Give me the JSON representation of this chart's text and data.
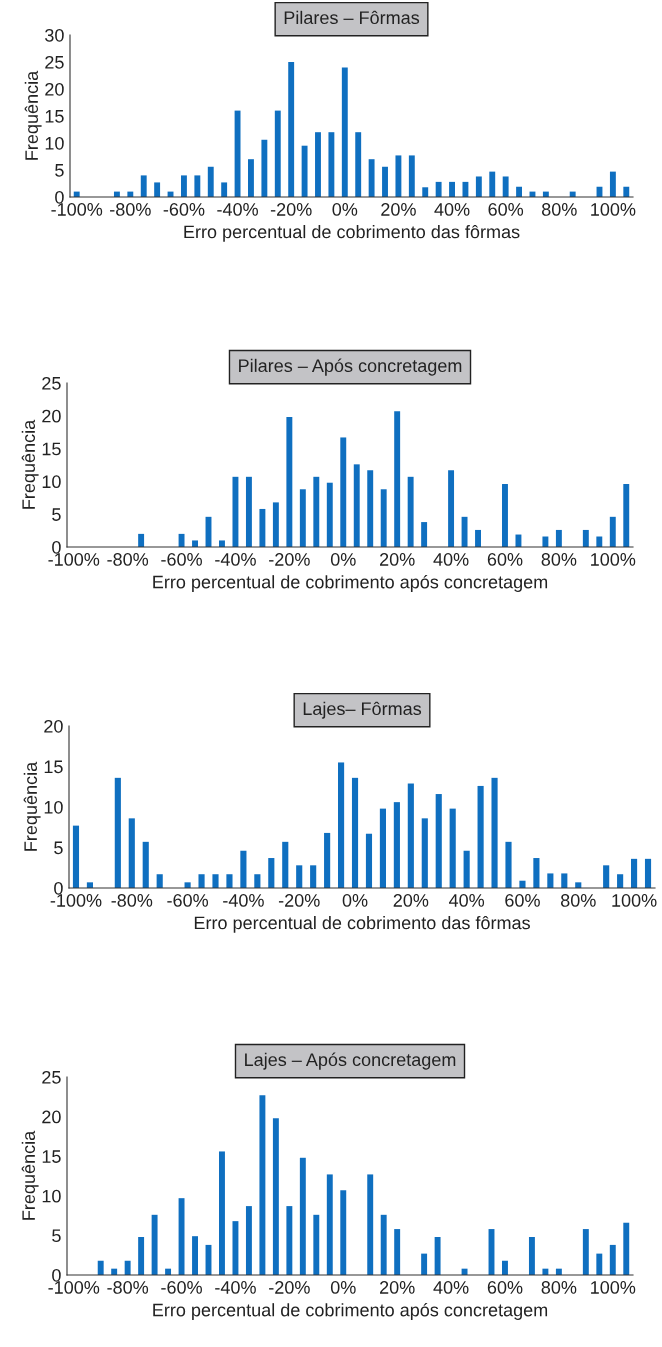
{
  "chart_data": [
    {
      "type": "bar",
      "title": "Pilares – Fôrmas",
      "xlabel": "Erro percentual de cobrimento das fôrmas",
      "ylabel": "Frequência",
      "color": "#0f6fc0",
      "x": [
        -100,
        -95,
        -90,
        -85,
        -80,
        -75,
        -70,
        -65,
        -60,
        -55,
        -50,
        -45,
        -40,
        -35,
        -30,
        -25,
        -20,
        -15,
        -10,
        -5,
        0,
        5,
        10,
        15,
        20,
        25,
        30,
        35,
        40,
        45,
        50,
        55,
        60,
        65,
        70,
        75,
        80,
        85,
        90,
        95,
        100,
        105
      ],
      "values": [
        1,
        0,
        0,
        1,
        1,
        4,
        2.7,
        1,
        4,
        4,
        5.6,
        2.7,
        16,
        7,
        10.6,
        16,
        25,
        9.5,
        12,
        12,
        24,
        12,
        7,
        5.6,
        7.7,
        7.7,
        1.8,
        2.8,
        2.8,
        2.8,
        3.8,
        4.7,
        3.8,
        1.9,
        1,
        1,
        0,
        1,
        0,
        1.9,
        4.7,
        1.9
      ],
      "xlim": [
        -102.5,
        107.5
      ],
      "xticks": [
        {
          "value": -100,
          "label": "-100%"
        },
        {
          "value": -80,
          "label": "-80%"
        },
        {
          "value": -60,
          "label": "-60%"
        },
        {
          "value": -40,
          "label": "-40%"
        },
        {
          "value": -20,
          "label": "-20%"
        },
        {
          "value": 0,
          "label": "0%"
        },
        {
          "value": 20,
          "label": "20%"
        },
        {
          "value": 40,
          "label": "40%"
        },
        {
          "value": 60,
          "label": "60%"
        },
        {
          "value": 80,
          "label": "80%"
        },
        {
          "value": 100,
          "label": "100%"
        }
      ],
      "ylim": [
        0,
        30
      ],
      "yticks": [
        0,
        5,
        10,
        15,
        20,
        25,
        30
      ]
    },
    {
      "type": "bar",
      "title": "Pilares – Após concretagem",
      "xlabel": "Erro percentual de cobrimento após concretagem",
      "ylabel": "Frequência",
      "color": "#0f6fc0",
      "x": [
        -100,
        -95,
        -90,
        -85,
        -80,
        -75,
        -70,
        -65,
        -60,
        -55,
        -50,
        -45,
        -40,
        -35,
        -30,
        -25,
        -20,
        -15,
        -10,
        -5,
        0,
        5,
        10,
        15,
        20,
        25,
        30,
        35,
        40,
        45,
        50,
        55,
        60,
        65,
        70,
        75,
        80,
        85,
        90,
        95,
        100,
        105
      ],
      "values": [
        0,
        0,
        0,
        0,
        0,
        2,
        0,
        0,
        2,
        1,
        4.6,
        1,
        10.7,
        10.7,
        5.8,
        6.8,
        19.8,
        8.8,
        10.7,
        9.8,
        16.7,
        12.6,
        11.7,
        8.8,
        20.7,
        10.7,
        3.8,
        0,
        11.7,
        4.6,
        2.6,
        0,
        9.6,
        1.9,
        0,
        1.6,
        2.6,
        0,
        2.6,
        1.6,
        4.6,
        9.6
      ],
      "xlim": [
        -102.5,
        107.5
      ],
      "xticks": [
        {
          "value": -100,
          "label": "-100%"
        },
        {
          "value": -80,
          "label": "-80%"
        },
        {
          "value": -60,
          "label": "-60%"
        },
        {
          "value": -40,
          "label": "-40%"
        },
        {
          "value": -20,
          "label": "-20%"
        },
        {
          "value": 0,
          "label": "0%"
        },
        {
          "value": 20,
          "label": "20%"
        },
        {
          "value": 40,
          "label": "40%"
        },
        {
          "value": 60,
          "label": "60%"
        },
        {
          "value": 80,
          "label": "80%"
        },
        {
          "value": 100,
          "label": "100%"
        }
      ],
      "ylim": [
        0,
        25
      ],
      "yticks": [
        0,
        5,
        10,
        15,
        20,
        25
      ]
    },
    {
      "type": "bar",
      "title": "Lajes– Fôrmas",
      "xlabel": "Erro percentual de cobrimento das fôrmas",
      "ylabel": "Frequência",
      "color": "#0f6fc0",
      "x": [
        -100,
        -95,
        -90,
        -85,
        -80,
        -75,
        -70,
        -65,
        -60,
        -55,
        -50,
        -45,
        -40,
        -35,
        -30,
        -25,
        -20,
        -15,
        -10,
        -5,
        0,
        5,
        10,
        15,
        20,
        25,
        30,
        35,
        40,
        45,
        50,
        55,
        60,
        65,
        70,
        75,
        80,
        85,
        90,
        95,
        100,
        105
      ],
      "values": [
        7.7,
        0.7,
        0,
        13.6,
        8.6,
        5.7,
        1.7,
        0,
        0.7,
        1.7,
        1.7,
        1.7,
        4.6,
        1.7,
        3.7,
        5.7,
        2.8,
        2.8,
        6.8,
        15.5,
        13.6,
        6.7,
        9.8,
        10.6,
        12.9,
        8.6,
        11.6,
        9.8,
        4.6,
        12.6,
        13.6,
        5.7,
        0.9,
        3.7,
        1.8,
        1.8,
        0.7,
        0,
        2.8,
        1.7,
        3.6,
        3.6
      ],
      "xlim": [
        -102.5,
        107.5
      ],
      "xticks": [
        {
          "value": -100,
          "label": "-100%"
        },
        {
          "value": -80,
          "label": "-80%"
        },
        {
          "value": -60,
          "label": "-60%"
        },
        {
          "value": -40,
          "label": "-40%"
        },
        {
          "value": -20,
          "label": "-20%"
        },
        {
          "value": 0,
          "label": "0%"
        },
        {
          "value": 20,
          "label": "20%"
        },
        {
          "value": 40,
          "label": "40%"
        },
        {
          "value": 60,
          "label": "60%"
        },
        {
          "value": 80,
          "label": "80%"
        },
        {
          "value": 100,
          "label": "100%"
        }
      ],
      "ylim": [
        0,
        20
      ],
      "yticks": [
        0,
        5,
        10,
        15,
        20
      ]
    },
    {
      "type": "bar",
      "title": "Lajes – Após concretagem",
      "xlabel": "Erro percentual de cobrimento após concretagem",
      "ylabel": "Frequência",
      "color": "#0f6fc0",
      "x": [
        -100,
        -95,
        -90,
        -85,
        -80,
        -75,
        -70,
        -65,
        -60,
        -55,
        -50,
        -45,
        -40,
        -35,
        -30,
        -25,
        -20,
        -15,
        -10,
        -5,
        0,
        5,
        10,
        15,
        20,
        25,
        30,
        35,
        40,
        45,
        50,
        55,
        60,
        65,
        70,
        75,
        80,
        85,
        90,
        95,
        100,
        105
      ],
      "values": [
        0,
        0,
        1.8,
        0.8,
        1.8,
        4.8,
        7.6,
        0.8,
        9.7,
        4.9,
        3.8,
        15.6,
        6.8,
        8.7,
        22.7,
        19.8,
        8.7,
        14.8,
        7.6,
        12.7,
        10.7,
        0,
        12.7,
        7.6,
        5.8,
        0,
        2.7,
        4.8,
        0,
        0.8,
        0,
        5.8,
        1.8,
        0,
        4.8,
        0.8,
        0.8,
        0,
        5.8,
        2.7,
        3.8,
        6.6
      ],
      "xlim": [
        -102.5,
        107.5
      ],
      "xticks": [
        {
          "value": -100,
          "label": "-100%"
        },
        {
          "value": -80,
          "label": "-80%"
        },
        {
          "value": -60,
          "label": "-60%"
        },
        {
          "value": -40,
          "label": "-40%"
        },
        {
          "value": -20,
          "label": "-20%"
        },
        {
          "value": 0,
          "label": "0%"
        },
        {
          "value": 20,
          "label": "20%"
        },
        {
          "value": 40,
          "label": "40%"
        },
        {
          "value": 60,
          "label": "60%"
        },
        {
          "value": 80,
          "label": "80%"
        },
        {
          "value": 100,
          "label": "100%"
        }
      ],
      "ylim": [
        0,
        25
      ],
      "yticks": [
        0,
        5,
        10,
        15,
        20,
        25
      ]
    }
  ]
}
